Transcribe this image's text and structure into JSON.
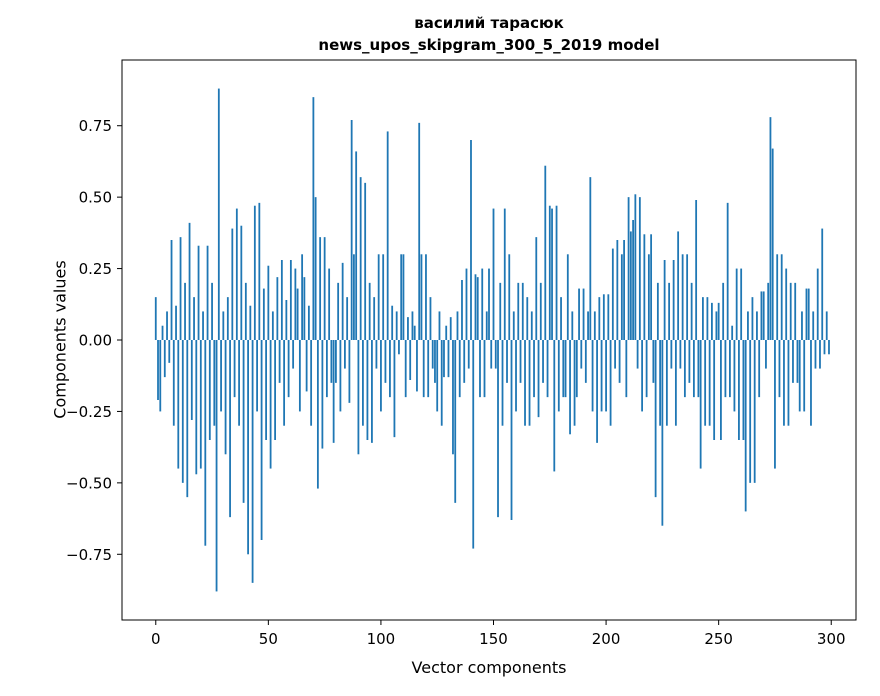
{
  "title": {
    "line1": "василий тарасюк",
    "line2": "news_upos_skipgram_300_5_2019 model"
  },
  "axes": {
    "xlabel": "Vector components",
    "ylabel": "Components values"
  },
  "chart_data": {
    "type": "bar",
    "title": "василий тарасюк\nnews_upos_skipgram_300_5_2019 model",
    "xlabel": "Vector components",
    "ylabel": "Components values",
    "bar_color": "#1f77b4",
    "legend": "none",
    "grid": false,
    "n_points": 300,
    "xlim": [
      -15,
      311
    ],
    "ylim": [
      -0.98,
      0.98
    ],
    "xticks": [
      0,
      50,
      100,
      150,
      200,
      250,
      300
    ],
    "xtick_labels": [
      "0",
      "50",
      "100",
      "150",
      "200",
      "250",
      "300"
    ],
    "yticks": [
      -0.75,
      -0.5,
      -0.25,
      0,
      0.25,
      0.5,
      0.75
    ],
    "ytick_labels": [
      "−0.75",
      "−0.50",
      "−0.25",
      "0.00",
      "0.25",
      "0.50",
      "0.75"
    ],
    "values": [
      0.15,
      -0.21,
      -0.25,
      0.05,
      -0.13,
      0.1,
      -0.08,
      0.35,
      -0.3,
      0.12,
      -0.45,
      0.36,
      -0.5,
      0.2,
      -0.55,
      0.41,
      -0.28,
      0.15,
      -0.47,
      0.33,
      -0.45,
      0.1,
      -0.72,
      0.33,
      -0.35,
      0.2,
      -0.3,
      -0.88,
      0.88,
      -0.25,
      0.1,
      -0.4,
      0.15,
      -0.62,
      0.39,
      -0.2,
      0.46,
      -0.3,
      0.4,
      -0.57,
      0.2,
      -0.75,
      0.12,
      -0.85,
      0.47,
      -0.25,
      0.48,
      -0.7,
      0.18,
      -0.35,
      0.26,
      -0.45,
      0.1,
      -0.35,
      0.22,
      -0.15,
      0.28,
      -0.3,
      0.14,
      -0.2,
      0.28,
      -0.1,
      0.25,
      0.18,
      -0.25,
      0.3,
      0.22,
      -0.18,
      0.12,
      -0.3,
      0.85,
      0.5,
      -0.52,
      0.36,
      -0.38,
      0.36,
      -0.2,
      0.25,
      -0.15,
      -0.36,
      -0.15,
      0.2,
      -0.25,
      0.27,
      -0.1,
      0.15,
      -0.22,
      0.77,
      0.3,
      0.66,
      -0.4,
      0.57,
      -0.3,
      0.55,
      -0.35,
      0.2,
      -0.36,
      0.15,
      -0.1,
      0.3,
      -0.25,
      0.3,
      -0.15,
      0.73,
      -0.2,
      0.12,
      -0.34,
      0.1,
      -0.05,
      0.3,
      0.3,
      -0.2,
      0.08,
      -0.14,
      0.1,
      0.05,
      -0.18,
      0.76,
      0.3,
      -0.2,
      0.3,
      -0.2,
      0.15,
      -0.1,
      -0.15,
      -0.25,
      0.1,
      -0.3,
      -0.13,
      0.05,
      -0.13,
      0.08,
      -0.4,
      -0.57,
      0.1,
      -0.2,
      0.21,
      -0.15,
      0.25,
      -0.1,
      0.7,
      -0.73,
      0.23,
      0.22,
      -0.2,
      0.25,
      -0.2,
      0.1,
      0.25,
      -0.1,
      0.46,
      -0.1,
      -0.62,
      0.2,
      -0.3,
      0.46,
      -0.15,
      0.3,
      -0.63,
      0.1,
      -0.25,
      0.2,
      -0.15,
      0.2,
      -0.3,
      0.15,
      -0.3,
      0.1,
      -0.2,
      0.36,
      -0.27,
      0.2,
      -0.15,
      0.61,
      -0.2,
      0.47,
      0.46,
      -0.46,
      0.47,
      -0.25,
      0.15,
      -0.2,
      -0.2,
      0.3,
      -0.33,
      0.1,
      -0.3,
      -0.2,
      0.18,
      -0.1,
      0.18,
      -0.15,
      0.1,
      0.57,
      -0.25,
      0.1,
      -0.36,
      0.15,
      -0.25,
      0.16,
      -0.25,
      0.16,
      -0.3,
      0.32,
      -0.1,
      0.35,
      -0.15,
      0.3,
      0.35,
      -0.2,
      0.5,
      0.38,
      0.42,
      0.51,
      -0.1,
      0.5,
      -0.25,
      0.37,
      -0.2,
      0.3,
      0.37,
      -0.15,
      -0.55,
      0.2,
      -0.3,
      -0.65,
      0.28,
      -0.3,
      0.2,
      -0.1,
      0.28,
      -0.3,
      0.38,
      -0.1,
      0.3,
      -0.2,
      0.3,
      -0.15,
      0.2,
      -0.2,
      0.49,
      -0.2,
      -0.45,
      0.15,
      -0.3,
      0.15,
      -0.3,
      0.13,
      -0.35,
      0.1,
      0.13,
      -0.35,
      0.2,
      -0.2,
      0.48,
      -0.2,
      0.05,
      -0.25,
      0.25,
      -0.35,
      0.25,
      -0.35,
      -0.6,
      0.1,
      -0.5,
      0.15,
      -0.5,
      0.1,
      -0.2,
      0.17,
      0.17,
      -0.1,
      0.2,
      0.78,
      0.67,
      -0.45,
      0.3,
      -0.2,
      0.3,
      -0.3,
      0.25,
      -0.3,
      0.2,
      -0.15,
      0.2,
      -0.15,
      -0.25,
      0.1,
      -0.25,
      0.18,
      0.18,
      -0.3,
      0.1,
      -0.1,
      0.25,
      -0.1,
      0.39,
      -0.05,
      0.1,
      -0.05
    ]
  }
}
